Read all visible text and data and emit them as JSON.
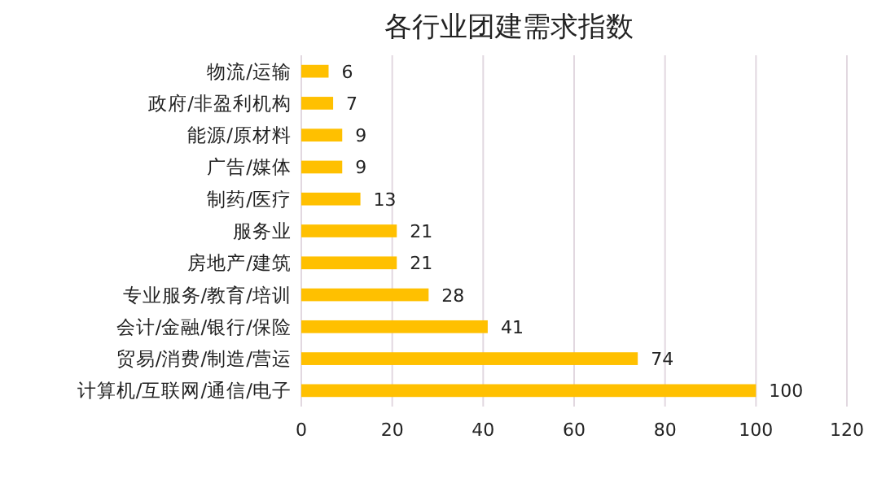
{
  "chart_data": {
    "type": "bar",
    "orientation": "horizontal",
    "title": "各行业团建需求指数",
    "categories": [
      "物流/运输",
      "政府/非盈利机构",
      "能源/原材料",
      "广告/媒体",
      "制药/医疗",
      "服务业",
      "房地产/建筑",
      "专业服务/教育/培训",
      "会计/金融/银行/保险",
      "贸易/消费/制造/营运",
      "计算机/互联网/通信/电子"
    ],
    "values": [
      6,
      7,
      9,
      9,
      13,
      21,
      21,
      28,
      41,
      74,
      100
    ],
    "color": "#ffc000",
    "xlim": [
      0,
      120
    ],
    "xticks": [
      0,
      20,
      40,
      60,
      80,
      100,
      120
    ],
    "grid": "x",
    "data_labels": true
  }
}
